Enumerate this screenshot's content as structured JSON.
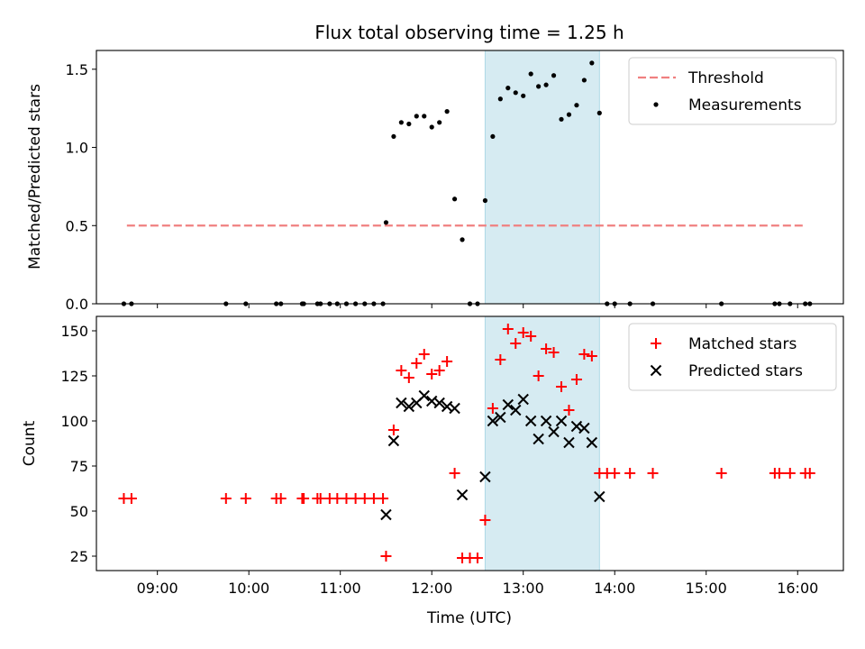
{
  "chart_data": {
    "type": "scatter",
    "title": "Flux total observing time = 1.25 h",
    "xlabel": "Time (UTC)",
    "xlim": [
      "08:20",
      "16:30"
    ],
    "xticks": [
      "09:00",
      "10:00",
      "11:00",
      "12:00",
      "13:00",
      "14:00",
      "15:00",
      "16:00"
    ],
    "highlight_span": {
      "start": "12:35",
      "end": "13:50",
      "color": "#add8e6"
    },
    "panels": [
      {
        "ylabel": "Matched/Predicted stars",
        "ylim": [
          0,
          1.62
        ],
        "yticks": [
          "0.0",
          "0.5",
          "1.0",
          "1.5"
        ],
        "legend_position": "top-right",
        "threshold": {
          "name": "Threshold",
          "value": 0.5,
          "x_start": "08:40",
          "x_end": "16:05",
          "color": "#f08080",
          "style": "dashed"
        },
        "series": [
          {
            "name": "Measurements",
            "marker": "dot",
            "color": "#000000",
            "points": [
              [
                "08:38",
                0
              ],
              [
                "08:43",
                0
              ],
              [
                "09:45",
                0
              ],
              [
                "09:58",
                0
              ],
              [
                "10:18",
                0
              ],
              [
                "10:21",
                0
              ],
              [
                "10:35",
                0
              ],
              [
                "10:36",
                0
              ],
              [
                "10:45",
                0
              ],
              [
                "10:47",
                0
              ],
              [
                "10:53",
                0
              ],
              [
                "10:58",
                0
              ],
              [
                "11:04",
                0
              ],
              [
                "11:10",
                0
              ],
              [
                "11:16",
                0
              ],
              [
                "11:22",
                0
              ],
              [
                "11:28",
                0
              ],
              [
                "11:30",
                0.52
              ],
              [
                "11:35",
                1.07
              ],
              [
                "11:40",
                1.16
              ],
              [
                "11:45",
                1.15
              ],
              [
                "11:50",
                1.2
              ],
              [
                "11:55",
                1.2
              ],
              [
                "12:00",
                1.13
              ],
              [
                "12:05",
                1.16
              ],
              [
                "12:10",
                1.23
              ],
              [
                "12:15",
                0.67
              ],
              [
                "12:20",
                0.41
              ],
              [
                "12:25",
                0
              ],
              [
                "12:30",
                0
              ],
              [
                "12:35",
                0.66
              ],
              [
                "12:40",
                1.07
              ],
              [
                "12:45",
                1.31
              ],
              [
                "12:50",
                1.38
              ],
              [
                "12:55",
                1.35
              ],
              [
                "13:00",
                1.33
              ],
              [
                "13:05",
                1.47
              ],
              [
                "13:10",
                1.39
              ],
              [
                "13:15",
                1.4
              ],
              [
                "13:20",
                1.46
              ],
              [
                "13:25",
                1.18
              ],
              [
                "13:30",
                1.21
              ],
              [
                "13:35",
                1.27
              ],
              [
                "13:40",
                1.43
              ],
              [
                "13:45",
                1.54
              ],
              [
                "13:50",
                1.22
              ],
              [
                "13:55",
                0
              ],
              [
                "14:00",
                0
              ],
              [
                "14:10",
                0
              ],
              [
                "14:25",
                0
              ],
              [
                "15:10",
                0
              ],
              [
                "15:45",
                0
              ],
              [
                "15:48",
                0
              ],
              [
                "15:55",
                0
              ],
              [
                "16:05",
                0
              ],
              [
                "16:08",
                0
              ]
            ]
          }
        ]
      },
      {
        "ylabel": "Count",
        "ylim": [
          17,
          158
        ],
        "yticks": [
          "25",
          "50",
          "75",
          "100",
          "125",
          "150"
        ],
        "legend_position": "top-right",
        "series": [
          {
            "name": "Matched stars",
            "marker": "plus",
            "color": "#ff0000",
            "points": [
              [
                "08:38",
                57
              ],
              [
                "08:43",
                57
              ],
              [
                "09:45",
                57
              ],
              [
                "09:58",
                57
              ],
              [
                "10:18",
                57
              ],
              [
                "10:21",
                57
              ],
              [
                "10:35",
                57
              ],
              [
                "10:36",
                57
              ],
              [
                "10:45",
                57
              ],
              [
                "10:47",
                57
              ],
              [
                "10:53",
                57
              ],
              [
                "10:58",
                57
              ],
              [
                "11:04",
                57
              ],
              [
                "11:10",
                57
              ],
              [
                "11:16",
                57
              ],
              [
                "11:22",
                57
              ],
              [
                "11:28",
                57
              ],
              [
                "11:30",
                25
              ],
              [
                "11:35",
                95
              ],
              [
                "11:40",
                128
              ],
              [
                "11:45",
                124
              ],
              [
                "11:50",
                132
              ],
              [
                "11:55",
                137
              ],
              [
                "12:00",
                126
              ],
              [
                "12:05",
                128
              ],
              [
                "12:10",
                133
              ],
              [
                "12:15",
                71
              ],
              [
                "12:20",
                24
              ],
              [
                "12:25",
                24
              ],
              [
                "12:30",
                24
              ],
              [
                "12:35",
                45
              ],
              [
                "12:40",
                107
              ],
              [
                "12:45",
                134
              ],
              [
                "12:50",
                151
              ],
              [
                "12:55",
                143
              ],
              [
                "13:00",
                149
              ],
              [
                "13:05",
                147
              ],
              [
                "13:10",
                125
              ],
              [
                "13:15",
                140
              ],
              [
                "13:20",
                138
              ],
              [
                "13:25",
                119
              ],
              [
                "13:30",
                106
              ],
              [
                "13:35",
                123
              ],
              [
                "13:40",
                137
              ],
              [
                "13:45",
                136
              ],
              [
                "13:50",
                71
              ],
              [
                "13:55",
                71
              ],
              [
                "14:00",
                71
              ],
              [
                "14:10",
                71
              ],
              [
                "14:25",
                71
              ],
              [
                "15:10",
                71
              ],
              [
                "15:45",
                71
              ],
              [
                "15:48",
                71
              ],
              [
                "15:55",
                71
              ],
              [
                "16:05",
                71
              ],
              [
                "16:08",
                71
              ]
            ]
          },
          {
            "name": "Predicted stars",
            "marker": "x",
            "color": "#000000",
            "points": [
              [
                "11:30",
                48
              ],
              [
                "11:35",
                89
              ],
              [
                "11:40",
                110
              ],
              [
                "11:45",
                108
              ],
              [
                "11:50",
                110
              ],
              [
                "11:55",
                114
              ],
              [
                "12:00",
                111
              ],
              [
                "12:05",
                110
              ],
              [
                "12:10",
                108
              ],
              [
                "12:15",
                107
              ],
              [
                "12:20",
                59
              ],
              [
                "12:35",
                69
              ],
              [
                "12:40",
                100
              ],
              [
                "12:45",
                102
              ],
              [
                "12:50",
                109
              ],
              [
                "12:55",
                106
              ],
              [
                "13:00",
                112
              ],
              [
                "13:05",
                100
              ],
              [
                "13:10",
                90
              ],
              [
                "13:15",
                100
              ],
              [
                "13:20",
                94
              ],
              [
                "13:25",
                100
              ],
              [
                "13:30",
                88
              ],
              [
                "13:35",
                97
              ],
              [
                "13:40",
                96
              ],
              [
                "13:45",
                88
              ],
              [
                "13:50",
                58
              ]
            ]
          }
        ]
      }
    ]
  }
}
